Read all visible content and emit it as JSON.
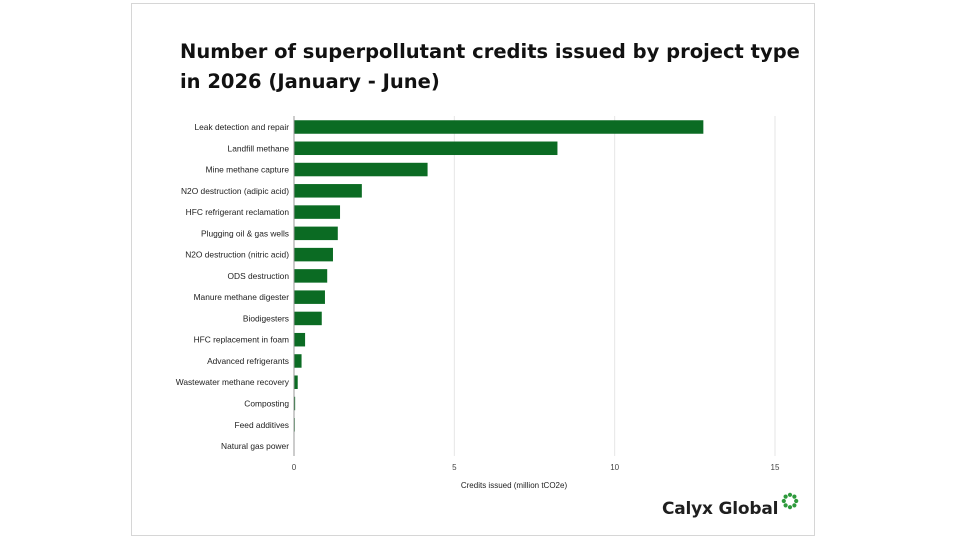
{
  "chart_data": {
    "type": "bar",
    "orientation": "horizontal",
    "title": "Number of superpollutant credits issued by project type in 2026 (January - June)",
    "xlabel": "Credits issued (million tCO2e)",
    "ylabel": "",
    "xlim": [
      0,
      15
    ],
    "xticks": [
      0,
      5,
      10,
      15
    ],
    "grid": true,
    "bar_color": "#0b6b23",
    "categories": [
      "Leak detection and repair",
      "Landfill methane",
      "Mine methane capture",
      "N2O destruction (adipic acid)",
      "HFC refrigerant reclamation",
      "Plugging oil & gas wells",
      "N2O destruction (nitric acid)",
      "ODS destruction",
      "Manure methane digester",
      "Biodigesters",
      "HFC replacement in foam",
      "Advanced refrigerants",
      "Wastewater methane recovery",
      "Composting",
      "Feed additives",
      "Natural gas power"
    ],
    "values": [
      12.75,
      8.2,
      4.15,
      2.1,
      1.42,
      1.35,
      1.2,
      1.02,
      0.95,
      0.85,
      0.33,
      0.22,
      0.1,
      0.02,
      0.01,
      0.0
    ]
  },
  "logo": {
    "text": "Calyx Global",
    "icon": "ring-of-dots-icon",
    "icon_color": "#2e9a3c"
  }
}
